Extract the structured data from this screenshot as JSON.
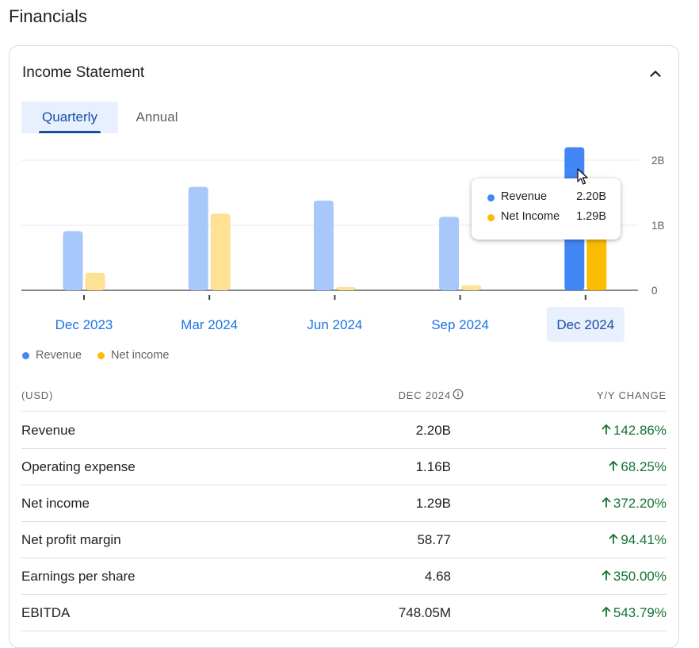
{
  "page": {
    "title": "Financials"
  },
  "card": {
    "title": "Income Statement"
  },
  "tabs": [
    {
      "label": "Quarterly",
      "selected": true
    },
    {
      "label": "Annual",
      "selected": false
    }
  ],
  "colors": {
    "revenue": "#4285f4",
    "revenue_faded": "#a8c7fa",
    "net_income": "#fbbc04",
    "net_income_faded": "#fde293",
    "positive_change": "#137333",
    "selected_tab_bg": "#e8f0fe",
    "link_blue": "#1a73e8"
  },
  "chart_data": {
    "type": "bar",
    "categories": [
      "Dec 2023",
      "Mar 2024",
      "Jun 2024",
      "Sep 2024",
      "Dec 2024"
    ],
    "selected_category": "Dec 2024",
    "series": [
      {
        "name": "Revenue",
        "values": [
          0.91,
          1.59,
          1.38,
          1.13,
          2.2
        ]
      },
      {
        "name": "Net income",
        "values": [
          0.27,
          1.18,
          0.05,
          0.08,
          1.29
        ]
      }
    ],
    "yticks": [
      "0",
      "1B",
      "2B"
    ],
    "ylim": [
      0,
      2.2
    ],
    "grid": true,
    "legend": [
      "Revenue",
      "Net income"
    ],
    "legend_position": "bottom-left"
  },
  "tooltip": {
    "rows": [
      {
        "label": "Revenue",
        "value": "2.20B"
      },
      {
        "label": "Net Income",
        "value": "1.29B"
      }
    ]
  },
  "table": {
    "headers": {
      "currency": "(USD)",
      "period": "DEC 2024",
      "change": "Y/Y CHANGE"
    },
    "rows": [
      {
        "name": "Revenue",
        "value": "2.20B",
        "change": "142.86%"
      },
      {
        "name": "Operating expense",
        "value": "1.16B",
        "change": "68.25%"
      },
      {
        "name": "Net income",
        "value": "1.29B",
        "change": "372.20%"
      },
      {
        "name": "Net profit margin",
        "value": "58.77",
        "change": "94.41%"
      },
      {
        "name": "Earnings per share",
        "value": "4.68",
        "change": "350.00%"
      },
      {
        "name": "EBITDA",
        "value": "748.05M",
        "change": "543.79%"
      }
    ]
  },
  "icons": {
    "collapse": "chevron-up-icon",
    "info": "info-icon",
    "change_arrow": "arrow-up-icon"
  }
}
